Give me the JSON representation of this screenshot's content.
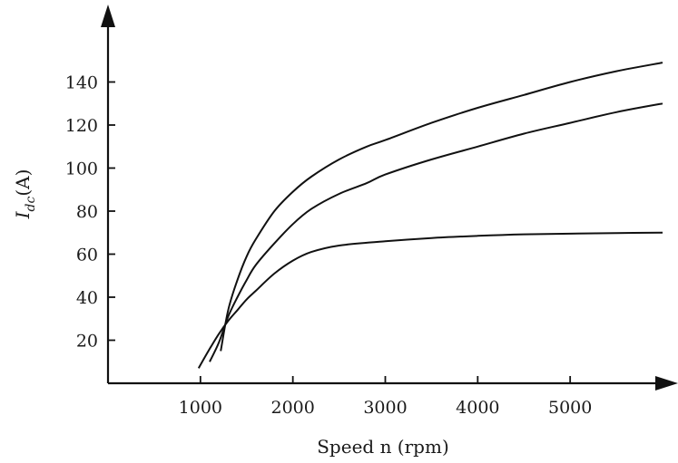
{
  "chart_data": {
    "type": "line",
    "title": "",
    "xlabel": "Speed n (rpm)",
    "ylabel_main": "I",
    "ylabel_sub": "dc",
    "ylabel_unit": "(A)",
    "xlim": [
      0,
      6000
    ],
    "ylim": [
      0,
      160
    ],
    "xticks": [
      1000,
      2000,
      3000,
      4000,
      5000
    ],
    "yticks": [
      20,
      40,
      60,
      80,
      100,
      120,
      140
    ],
    "grid": false,
    "legend": "none",
    "series": [
      {
        "color": "#111111",
        "x": [
          1220,
          1300,
          1400,
          1500,
          1600,
          1800,
          2000,
          2200,
          2500,
          2800,
          3000,
          3500,
          4000,
          4500,
          5000,
          5500,
          6000
        ],
        "y": [
          15,
          34,
          48,
          59,
          67,
          80,
          89,
          96,
          104,
          110,
          113,
          121,
          128,
          134,
          140,
          145,
          149
        ]
      },
      {
        "color": "#111111",
        "x": [
          1100,
          1200,
          1300,
          1400,
          1500,
          1600,
          1800,
          2000,
          2200,
          2500,
          2800,
          3000,
          3500,
          4000,
          4500,
          5000,
          5500,
          6000
        ],
        "y": [
          10,
          19,
          31,
          40,
          48,
          55,
          65,
          74,
          81,
          88,
          93,
          97,
          104,
          110,
          116,
          121,
          126,
          130
        ]
      },
      {
        "color": "#111111",
        "x": [
          980,
          1100,
          1200,
          1300,
          1400,
          1500,
          1600,
          1800,
          2000,
          2200,
          2500,
          3000,
          3500,
          4000,
          4500,
          5000,
          5500,
          6000
        ],
        "y": [
          7,
          16,
          23,
          29,
          34,
          39,
          43,
          51,
          57,
          61,
          64,
          66,
          67.5,
          68.5,
          69.2,
          69.5,
          69.8,
          70
        ]
      }
    ]
  }
}
